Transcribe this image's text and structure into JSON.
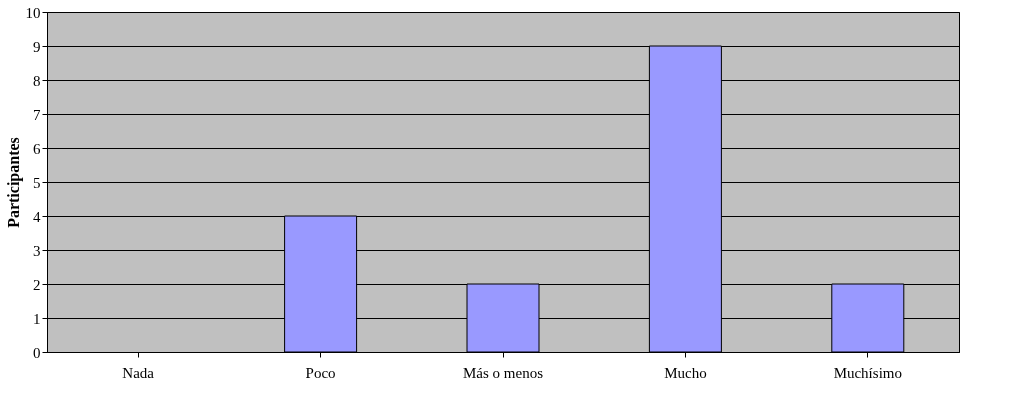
{
  "chart_data": {
    "type": "bar",
    "ylabel": "Participantes",
    "categories": [
      "Nada",
      "Poco",
      "Más o menos",
      "Mucho",
      "Muchísimo"
    ],
    "values": [
      0,
      4,
      2,
      9,
      2
    ],
    "color": "#9999ff",
    "ylim": [
      0,
      10
    ],
    "yticks": [
      0,
      1,
      2,
      3,
      4,
      5,
      6,
      7,
      8,
      9,
      10
    ],
    "grid": "y"
  }
}
